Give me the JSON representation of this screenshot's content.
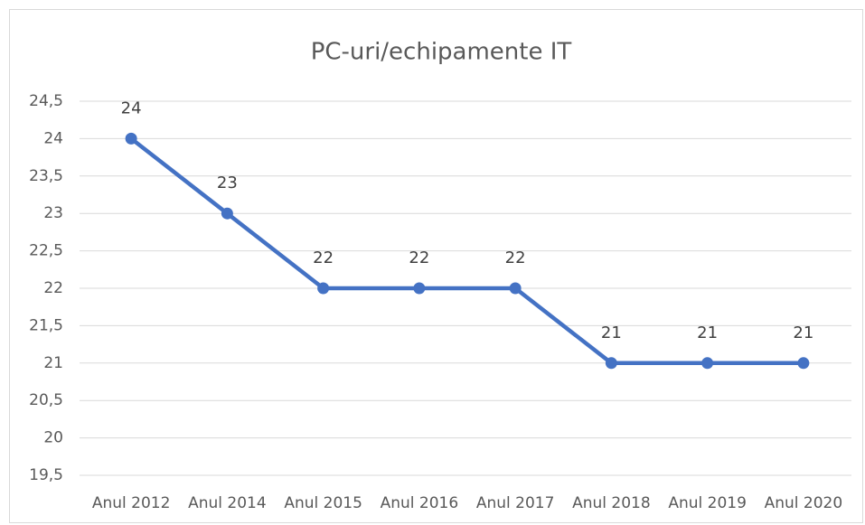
{
  "chart_data": {
    "type": "line",
    "title": "PC-uri/echipamente IT",
    "categories": [
      "Anul 2012",
      "Anul 2014",
      "Anul 2015",
      "Anul 2016",
      "Anul 2017",
      "Anul 2018",
      "Anul 2019",
      "Anul 2020"
    ],
    "values": [
      24,
      23,
      22,
      22,
      22,
      21,
      21,
      21
    ],
    "color": "#4472c4",
    "ylim": [
      19.5,
      24.5
    ],
    "yticks": [
      {
        "value": 19.5,
        "label": "19,5"
      },
      20,
      {
        "value": 20.5,
        "label": "20,5"
      },
      21,
      {
        "value": 21.5,
        "label": "21,5"
      },
      22,
      {
        "value": 22.5,
        "label": "22,5"
      },
      23,
      {
        "value": 23.5,
        "label": "23,5"
      },
      24,
      {
        "value": 24.5,
        "label": "24,5"
      }
    ],
    "grid": true
  }
}
